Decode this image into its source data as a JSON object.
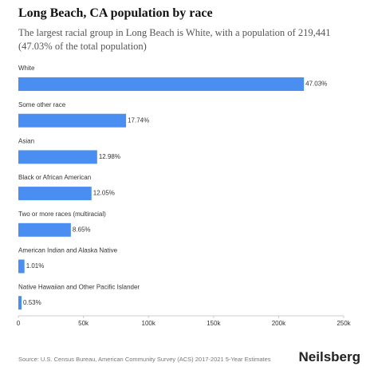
{
  "chart_data": {
    "type": "bar",
    "orientation": "horizontal",
    "title": "Long Beach, CA population by race",
    "subtitle": "The largest racial group in Long Beach is White, with a population of 219,441 (47.03% of the total population)",
    "categories": [
      "White",
      "Some other race",
      "Asian",
      "Black or African American",
      "Two or more races (multiracial)",
      "American Indian and Alaska Native",
      "Native Hawaiian and Other Pacific Islander"
    ],
    "values": [
      219441,
      82770,
      60560,
      56220,
      40360,
      4712,
      2473
    ],
    "value_labels": [
      "47.03%",
      "17.74%",
      "12.98%",
      "12.05%",
      "8.65%",
      "1.01%",
      "0.53%"
    ],
    "color": "#4a8ef2",
    "xlim": [
      0,
      250000
    ],
    "xticks": [
      0,
      {
        "value": 50000,
        "label": "50k"
      },
      {
        "value": 100000,
        "label": "100k"
      },
      {
        "value": 150000,
        "label": "150k"
      },
      {
        "value": 200000,
        "label": "200k"
      },
      {
        "value": 250000,
        "label": "250k"
      }
    ],
    "source": "Source: U.S. Census Bureau, American Community Survey (ACS) 2017-2021 5-Year Estimates",
    "brand": "Neilsberg"
  }
}
